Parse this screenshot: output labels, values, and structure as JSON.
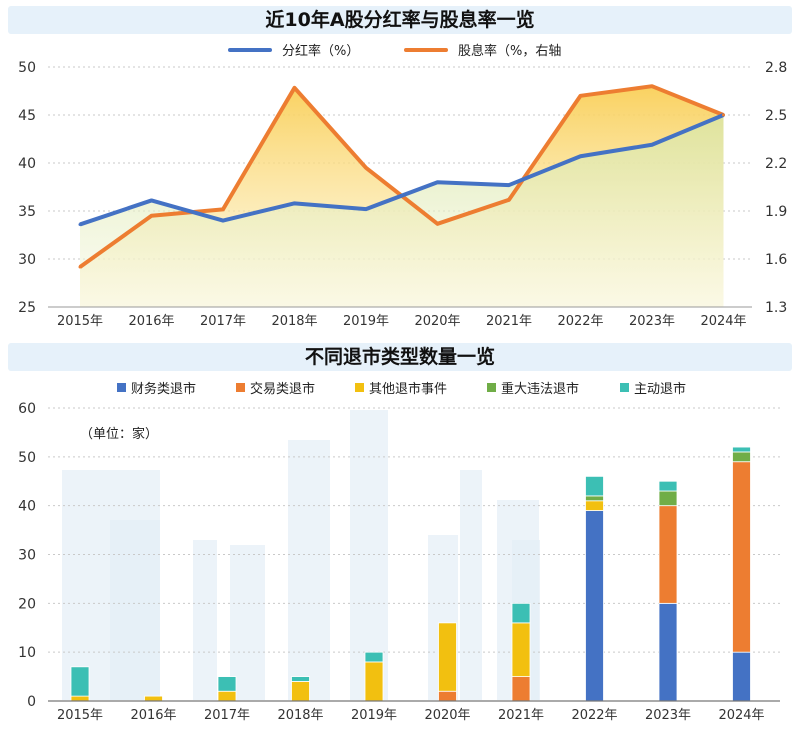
{
  "chart_data": [
    {
      "type": "line",
      "title": "近10年A股分红率与股息率一览",
      "categories": [
        "2015年",
        "2016年",
        "2017年",
        "2018年",
        "2019年",
        "2020年",
        "2021年",
        "2022年",
        "2023年",
        "2024年"
      ],
      "series": [
        {
          "name": "分红率（%）",
          "axis": "left",
          "color": "#4472c4",
          "values": [
            33.6,
            36.1,
            34.0,
            35.8,
            35.2,
            38.0,
            37.7,
            40.7,
            41.9,
            45.0
          ]
        },
        {
          "name": "股息率（%，右轴",
          "axis": "right",
          "color": "#ed7d31",
          "values": [
            1.55,
            1.87,
            1.91,
            2.67,
            2.17,
            1.82,
            1.97,
            2.62,
            2.68,
            2.5
          ]
        }
      ],
      "y_ticks": [
        "50",
        "45",
        "40",
        "35",
        "30",
        "25"
      ],
      "y2_ticks": [
        "2.8",
        "2.5",
        "2.2",
        "1.9",
        "1.6",
        "1.3"
      ],
      "ylim": [
        25,
        50
      ],
      "y2lim": [
        1.3,
        2.8
      ],
      "legend_position": "top-center",
      "grid": true
    },
    {
      "type": "bar",
      "stacked": true,
      "title": "不同退市类型数量一览",
      "annotation": "（单位：家）",
      "categories": [
        "2015年",
        "2016年",
        "2017年",
        "2018年",
        "2019年",
        "2020年",
        "2021年",
        "2022年",
        "2023年",
        "2024年"
      ],
      "series": [
        {
          "name": "财务类退市",
          "color": "#4472c4",
          "values": [
            0,
            0,
            0,
            0,
            0,
            0,
            0,
            39,
            20,
            10
          ]
        },
        {
          "name": "交易类退市",
          "color": "#ed7d31",
          "values": [
            0,
            0,
            0,
            0,
            0,
            2,
            5,
            0,
            20,
            39
          ]
        },
        {
          "name": "其他退市事件",
          "color": "#f2c010",
          "values": [
            1,
            1,
            2,
            4,
            8,
            14,
            11,
            2,
            0,
            0
          ]
        },
        {
          "name": "重大违法退市",
          "color": "#70ad47",
          "values": [
            0,
            0,
            0,
            0,
            0,
            0,
            0,
            1,
            3,
            2
          ]
        },
        {
          "name": "主动退市",
          "color": "#3cbfb4",
          "values": [
            6,
            0,
            3,
            1,
            2,
            0,
            4,
            4,
            2,
            1
          ]
        }
      ],
      "y_ticks": [
        "60",
        "50",
        "40",
        "30",
        "20",
        "10",
        "0"
      ],
      "ylim": [
        0,
        60
      ],
      "legend_position": "top-center",
      "grid": true
    }
  ]
}
